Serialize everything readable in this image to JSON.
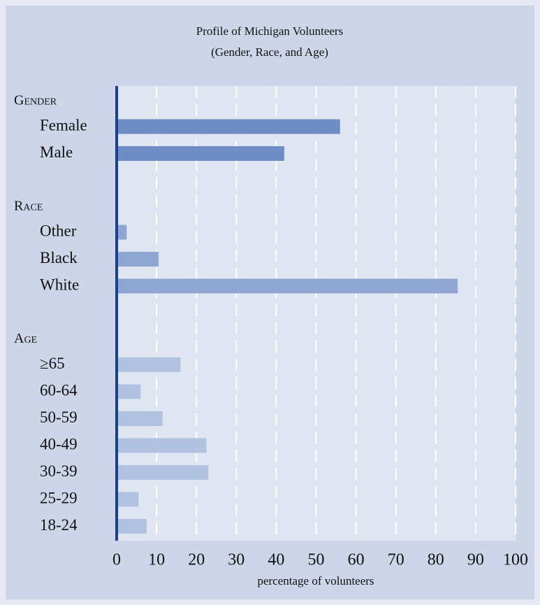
{
  "chart_data": {
    "type": "bar",
    "orientation": "horizontal",
    "title": "Profile of Michigan Volunteers",
    "subtitle": "(Gender, Race, and Age)",
    "x_label": "percentage of volunteers",
    "xlim": [
      0,
      100
    ],
    "xticks": [
      0,
      10,
      20,
      30,
      40,
      50,
      60,
      70,
      80,
      90,
      100
    ],
    "grid": true,
    "groups": [
      {
        "name": "Gender",
        "color": "#6f8cc4",
        "categories": [
          "Female",
          "Male"
        ],
        "values": [
          56,
          42
        ]
      },
      {
        "name": "Race",
        "color": "#8fa6d2",
        "categories": [
          "Other",
          "Black",
          "White"
        ],
        "values": [
          2.5,
          10.5,
          85.5
        ]
      },
      {
        "name": "Age",
        "color": "#b1c2e0",
        "categories": [
          "≥65",
          "60-64",
          "50-59",
          "40-49",
          "30-39",
          "25-29",
          "18-24"
        ],
        "values": [
          16,
          6,
          11.5,
          22.5,
          23,
          5.5,
          7.5
        ]
      }
    ]
  }
}
